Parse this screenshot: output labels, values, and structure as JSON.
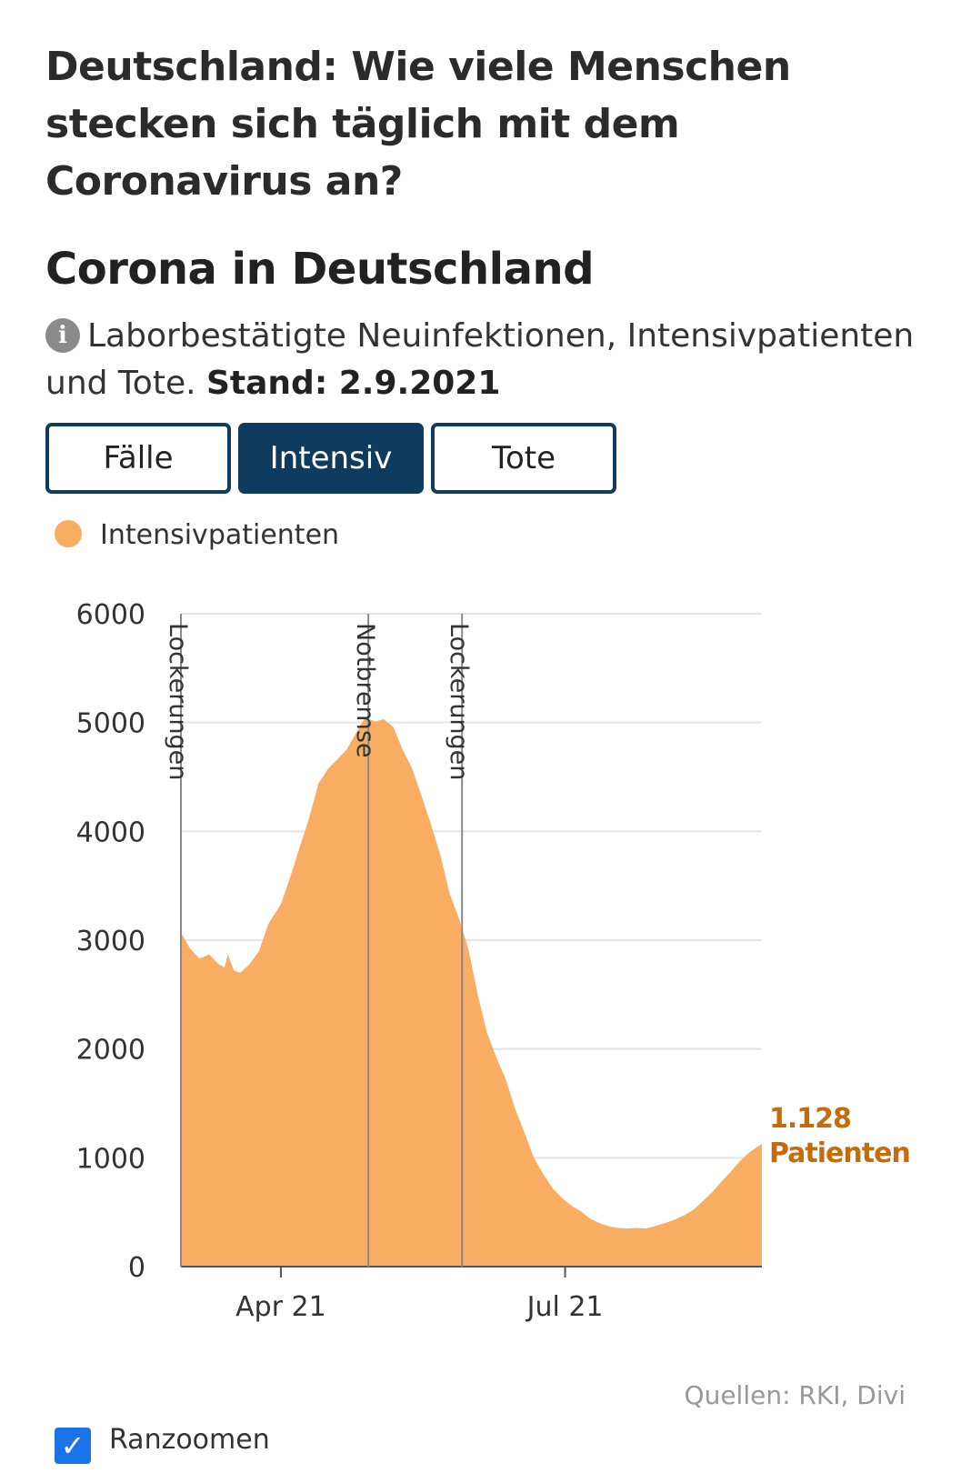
{
  "headline": "Deutschland: Wie viele Menschen stecken sich täglich mit dem Coronavirus an?",
  "chart_title": "Corona in Deutschland",
  "subtitle": {
    "text": "Laborbestätigte Neuinfektionen, Intensivpatienten und Tote.",
    "stand": "Stand: 2.9.2021",
    "info_icon": "info-icon"
  },
  "tabs": [
    {
      "label": "Fälle",
      "active": false
    },
    {
      "label": "Intensiv",
      "active": true
    },
    {
      "label": "Tote",
      "active": false
    }
  ],
  "legend": {
    "label": "Intensivpatienten",
    "color": "#f8ad63"
  },
  "source": "Quellen: RKI, Divi",
  "zoom": {
    "label": "Ranzoomen",
    "checked": true
  },
  "colors": {
    "area": "#f8ad63",
    "accent": "#0f3b5f",
    "annotation_label": "#c66a0a"
  },
  "chart_data": {
    "type": "area",
    "title": "",
    "xlabel": "",
    "ylabel": "",
    "ylim": [
      0,
      6000
    ],
    "yticks": [
      0,
      1000,
      2000,
      3000,
      4000,
      5000,
      6000
    ],
    "xlim": [
      "2021-02-28",
      "2021-09-02"
    ],
    "xticks": [
      {
        "date": "2021-04-01",
        "label": "Apr 21"
      },
      {
        "date": "2021-07-01",
        "label": "Jul 21"
      }
    ],
    "grid": true,
    "series": [
      {
        "name": "Intensivpatienten",
        "points": [
          [
            "2021-02-28",
            3070
          ],
          [
            "2021-03-03",
            2920
          ],
          [
            "2021-03-06",
            2830
          ],
          [
            "2021-03-09",
            2870
          ],
          [
            "2021-03-12",
            2780
          ],
          [
            "2021-03-14",
            2750
          ],
          [
            "2021-03-15",
            2870
          ],
          [
            "2021-03-17",
            2720
          ],
          [
            "2021-03-19",
            2700
          ],
          [
            "2021-03-22",
            2780
          ],
          [
            "2021-03-25",
            2900
          ],
          [
            "2021-03-28",
            3150
          ],
          [
            "2021-04-01",
            3330
          ],
          [
            "2021-04-04",
            3580
          ],
          [
            "2021-04-07",
            3850
          ],
          [
            "2021-04-10",
            4120
          ],
          [
            "2021-04-13",
            4440
          ],
          [
            "2021-04-16",
            4570
          ],
          [
            "2021-04-19",
            4660
          ],
          [
            "2021-04-22",
            4750
          ],
          [
            "2021-04-25",
            4900
          ],
          [
            "2021-04-28",
            5050
          ],
          [
            "2021-05-01",
            5010
          ],
          [
            "2021-05-04",
            5030
          ],
          [
            "2021-05-07",
            4960
          ],
          [
            "2021-05-10",
            4750
          ],
          [
            "2021-05-13",
            4580
          ],
          [
            "2021-05-16",
            4330
          ],
          [
            "2021-05-19",
            4070
          ],
          [
            "2021-05-22",
            3790
          ],
          [
            "2021-05-25",
            3430
          ],
          [
            "2021-05-28",
            3200
          ],
          [
            "2021-05-31",
            2920
          ],
          [
            "2021-06-03",
            2500
          ],
          [
            "2021-06-06",
            2150
          ],
          [
            "2021-06-09",
            1920
          ],
          [
            "2021-06-12",
            1720
          ],
          [
            "2021-06-15",
            1450
          ],
          [
            "2021-06-18",
            1230
          ],
          [
            "2021-06-21",
            1000
          ],
          [
            "2021-06-24",
            850
          ],
          [
            "2021-06-27",
            720
          ],
          [
            "2021-06-30",
            630
          ],
          [
            "2021-07-03",
            560
          ],
          [
            "2021-07-06",
            510
          ],
          [
            "2021-07-09",
            440
          ],
          [
            "2021-07-12",
            400
          ],
          [
            "2021-07-15",
            370
          ],
          [
            "2021-07-18",
            355
          ],
          [
            "2021-07-21",
            350
          ],
          [
            "2021-07-24",
            355
          ],
          [
            "2021-07-27",
            350
          ],
          [
            "2021-07-30",
            375
          ],
          [
            "2021-08-02",
            400
          ],
          [
            "2021-08-05",
            430
          ],
          [
            "2021-08-08",
            470
          ],
          [
            "2021-08-11",
            520
          ],
          [
            "2021-08-14",
            600
          ],
          [
            "2021-08-17",
            680
          ],
          [
            "2021-08-20",
            780
          ],
          [
            "2021-08-23",
            870
          ],
          [
            "2021-08-26",
            970
          ],
          [
            "2021-08-29",
            1050
          ],
          [
            "2021-09-02",
            1128
          ]
        ]
      }
    ],
    "annotations": [
      {
        "date": "2021-02-28",
        "label": "Lockerungen"
      },
      {
        "date": "2021-04-29",
        "label": "Notbremse"
      },
      {
        "date": "2021-05-29",
        "label": "Lockerungen"
      }
    ],
    "end_label": {
      "value_text": "1.128",
      "unit_text": "Patienten",
      "value": 1128
    }
  }
}
